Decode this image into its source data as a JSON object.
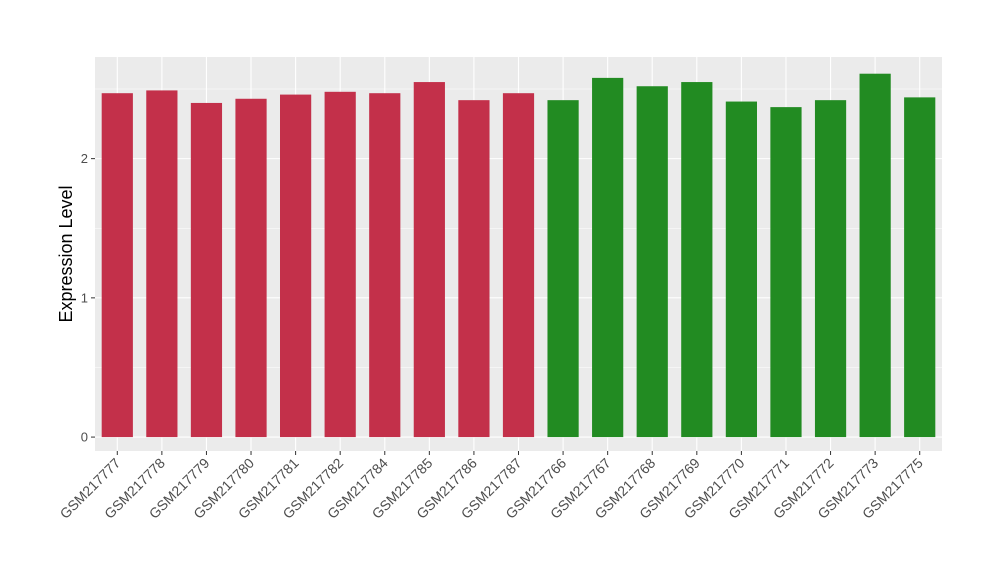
{
  "chart_data": {
    "type": "bar",
    "title": "",
    "xlabel": "",
    "ylabel": "Expression Level",
    "ylim": [
      -0.1,
      2.73
    ],
    "yticks": [
      0,
      1,
      2
    ],
    "grid": true,
    "legend": "none",
    "panel_background": "#ebebeb",
    "categories": [
      "GSM217777",
      "GSM217778",
      "GSM217779",
      "GSM217780",
      "GSM217781",
      "GSM217782",
      "GSM217784",
      "GSM217785",
      "GSM217786",
      "GSM217787",
      "GSM217766",
      "GSM217767",
      "GSM217768",
      "GSM217769",
      "GSM217770",
      "GSM217771",
      "GSM217772",
      "GSM217773",
      "GSM217775"
    ],
    "values": [
      2.47,
      2.49,
      2.4,
      2.43,
      2.46,
      2.48,
      2.47,
      2.55,
      2.42,
      2.47,
      2.42,
      2.58,
      2.52,
      2.55,
      2.41,
      2.37,
      2.42,
      2.61,
      2.44
    ],
    "groups": [
      "g1",
      "g1",
      "g1",
      "g1",
      "g1",
      "g1",
      "g1",
      "g1",
      "g1",
      "g1",
      "g2",
      "g2",
      "g2",
      "g2",
      "g2",
      "g2",
      "g2",
      "g2",
      "g2"
    ],
    "group_colors": {
      "g1": "#c3304a",
      "g2": "#228b22"
    }
  }
}
